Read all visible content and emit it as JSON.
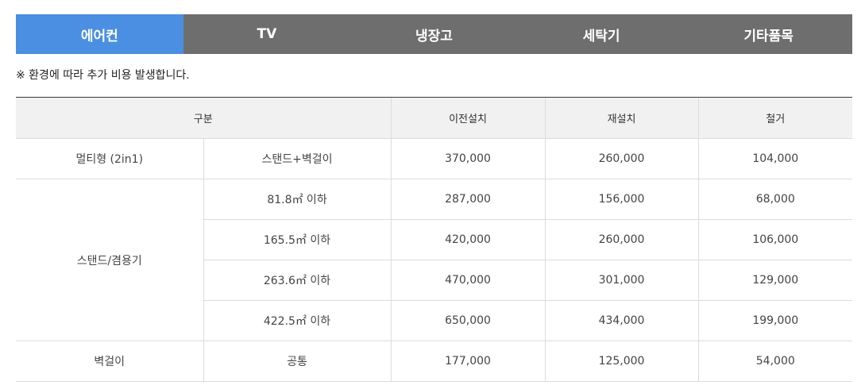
{
  "tabs": [
    {
      "label": "에어컨",
      "active": true
    },
    {
      "label": "TV",
      "active": false
    },
    {
      "label": "냉장고",
      "active": false
    },
    {
      "label": "세탁기",
      "active": false
    },
    {
      "label": "기타품목",
      "active": false
    }
  ],
  "colors": {
    "active_tab": "#4a8fe2",
    "tab_bar": "#6e6e6e",
    "header_bg": "#f1f1f1"
  },
  "notice": "※ 환경에 따라 추가 비용 발생합니다.",
  "table": {
    "headers": {
      "category": "구분",
      "relocation": "이전설치",
      "reinstall": "재설치",
      "removal": "철거"
    },
    "groups": [
      {
        "name": "멀티형 (2in1)",
        "rows": [
          {
            "type": "스탠드+벽걸이",
            "relocation": "370,000",
            "reinstall": "260,000",
            "removal": "104,000"
          }
        ]
      },
      {
        "name": "스탠드/겸용기",
        "rows": [
          {
            "type": "81.8㎡ 이하",
            "relocation": "287,000",
            "reinstall": "156,000",
            "removal": "68,000"
          },
          {
            "type": "165.5㎡ 이하",
            "relocation": "420,000",
            "reinstall": "260,000",
            "removal": "106,000"
          },
          {
            "type": "263.6㎡ 이하",
            "relocation": "470,000",
            "reinstall": "301,000",
            "removal": "129,000"
          },
          {
            "type": "422.5㎡ 이하",
            "relocation": "650,000",
            "reinstall": "434,000",
            "removal": "199,000"
          }
        ]
      },
      {
        "name": "벽걸이",
        "rows": [
          {
            "type": "공통",
            "relocation": "177,000",
            "reinstall": "125,000",
            "removal": "54,000"
          }
        ]
      }
    ]
  }
}
